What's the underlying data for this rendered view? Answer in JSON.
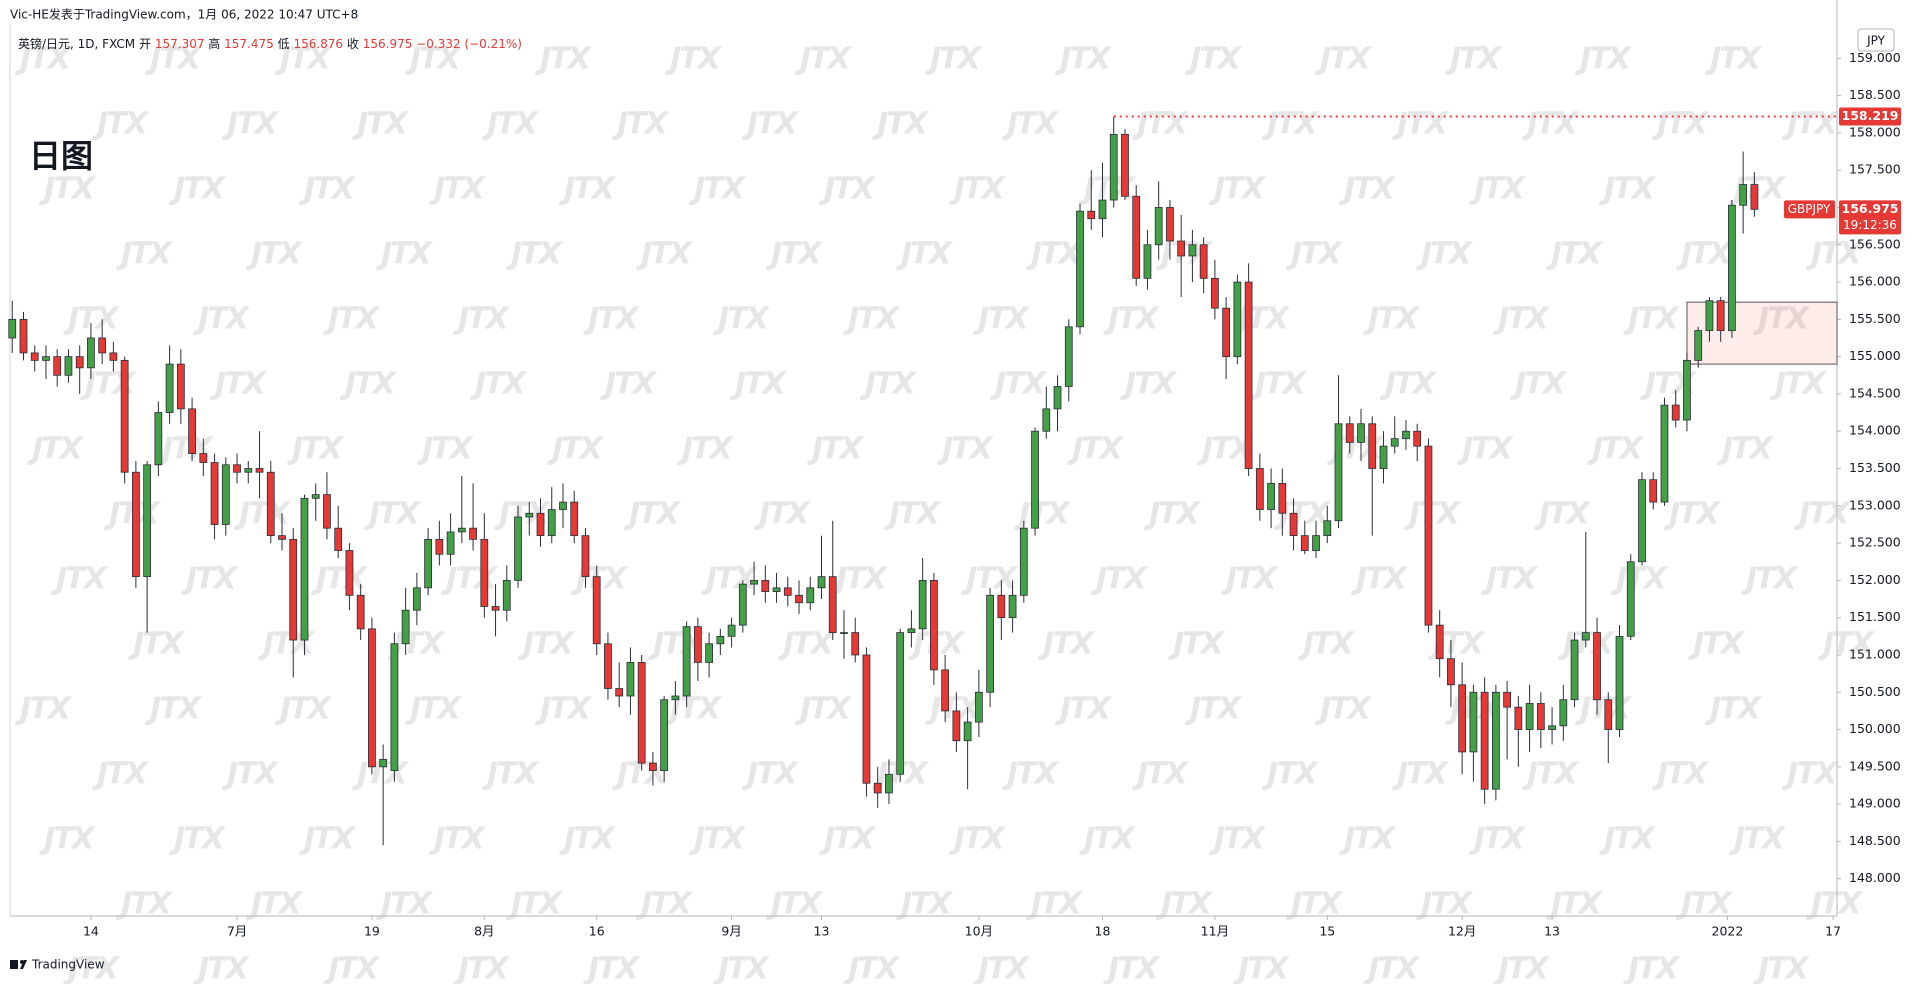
{
  "header": "Vic-HE发表于TradingView.com，1月 06, 2022 10:47 UTC+8",
  "annotation": "日图",
  "watermark": "JTX",
  "footer": "TradingView",
  "chart_data": {
    "type": "candlestick",
    "currency": "JPY",
    "symbol": "GBPJPY",
    "countdown": "19:12:36",
    "legend": {
      "open": "开",
      "high": "高",
      "low": "低",
      "close": "收",
      "change": "−0.332 (−0.21%)"
    },
    "up_color": "#43a047",
    "down_color": "#e53935",
    "xlim": [
      -0.2,
      162.35
    ],
    "ylim": [
      147.5,
      159.46
    ],
    "xticks": [
      {
        "value": 7,
        "label": "14"
      },
      {
        "value": 20,
        "label": "7月"
      },
      {
        "value": 32,
        "label": "19"
      },
      {
        "value": 42,
        "label": "8月"
      },
      {
        "value": 52,
        "label": "16"
      },
      {
        "value": 64,
        "label": "9月"
      },
      {
        "value": 72,
        "label": "13"
      },
      {
        "value": 86,
        "label": "10月"
      },
      {
        "value": 97,
        "label": "18"
      },
      {
        "value": 107,
        "label": "11月"
      },
      {
        "value": 117,
        "label": "15"
      },
      {
        "value": 129,
        "label": "12月"
      },
      {
        "value": 137,
        "label": "13"
      },
      {
        "value": 152.6,
        "label": "2022"
      },
      {
        "value": 162,
        "label": "17"
      }
    ],
    "yticks": [
      {
        "value": 148,
        "label": "148.000"
      },
      {
        "value": 148.5,
        "label": "148.500"
      },
      {
        "value": 149,
        "label": "149.000"
      },
      {
        "value": 149.5,
        "label": "149.500"
      },
      {
        "value": 150,
        "label": "150.000"
      },
      {
        "value": 150.5,
        "label": "150.500"
      },
      {
        "value": 151,
        "label": "151.000"
      },
      {
        "value": 151.5,
        "label": "151.500"
      },
      {
        "value": 152,
        "label": "152.000"
      },
      {
        "value": 152.5,
        "label": "152.500"
      },
      {
        "value": 153,
        "label": "153.000"
      },
      {
        "value": 153.5,
        "label": "153.500"
      },
      {
        "value": 154,
        "label": "154.000"
      },
      {
        "value": 154.5,
        "label": "154.500"
      },
      {
        "value": 155,
        "label": "155.000"
      },
      {
        "value": 155.5,
        "label": "155.500"
      },
      {
        "value": 156,
        "label": "156.000"
      },
      {
        "value": 156.5,
        "label": "156.500"
      },
      {
        "value": 157,
        "label": "157.000"
      },
      {
        "value": 157.5,
        "label": "157.500"
      },
      {
        "value": 158,
        "label": "158.000"
      },
      {
        "value": 158.5,
        "label": "158.500"
      },
      {
        "value": 159,
        "label": "159.000"
      }
    ],
    "hline": {
      "value": 158.219,
      "start": 98,
      "color": "#e53935"
    },
    "zone": {
      "start": 149,
      "top": 155.73,
      "bottom": 154.9
    },
    "series": [
      {
        "name": "英镑/日元, 1D, FXCM",
        "open": [
          155.25,
          155.5,
          155.05,
          154.95,
          155.0,
          154.75,
          155.0,
          154.85,
          155.25,
          155.05,
          154.95,
          153.45,
          152.05,
          153.55,
          154.25,
          154.9,
          154.3,
          153.7,
          153.58,
          152.75,
          153.55,
          153.45,
          153.5,
          153.45,
          152.6,
          152.55,
          151.2,
          153.1,
          153.15,
          152.7,
          152.4,
          151.8,
          151.35,
          149.5,
          149.45,
          151.15,
          151.6,
          151.9,
          152.55,
          152.35,
          152.65,
          152.7,
          152.55,
          151.65,
          151.6,
          152.0,
          152.85,
          152.9,
          152.6,
          152.95,
          153.05,
          152.6,
          152.05,
          151.15,
          150.55,
          150.45,
          150.9,
          149.55,
          149.45,
          150.4,
          150.45,
          151.38,
          150.9,
          151.15,
          151.25,
          151.4,
          151.95,
          152.0,
          151.85,
          151.9,
          151.8,
          151.7,
          151.9,
          152.05,
          151.3,
          151.3,
          151.0,
          149.28,
          149.15,
          149.4,
          151.3,
          151.35,
          152.0,
          150.8,
          150.25,
          149.85,
          150.1,
          150.5,
          151.8,
          151.5,
          151.8,
          152.7,
          154.0,
          154.3,
          154.6,
          155.4,
          156.95,
          156.85,
          157.1,
          157.98,
          157.15,
          156.05,
          156.5,
          157.0,
          156.55,
          156.35,
          156.5,
          156.05,
          155.65,
          155.0,
          156.0,
          153.5,
          152.95,
          153.3,
          152.9,
          152.6,
          152.4,
          152.6,
          152.8,
          154.1,
          153.85,
          154.1,
          153.5,
          153.8,
          153.9,
          154.0,
          153.8,
          151.4,
          150.95,
          150.6,
          149.7,
          150.5,
          149.2,
          150.5,
          150.3,
          150.0,
          150.35,
          150.0,
          150.05,
          150.4,
          151.2,
          151.3,
          150.4,
          150.0,
          151.25,
          152.25,
          153.35,
          153.05,
          154.35,
          154.15,
          154.95,
          155.35,
          155.75,
          155.35,
          157.03,
          157.307
        ],
        "high": [
          155.75,
          155.6,
          155.15,
          155.15,
          155.1,
          155.1,
          155.15,
          155.45,
          155.5,
          155.2,
          155.0,
          153.6,
          153.6,
          154.4,
          155.15,
          155.1,
          154.45,
          153.9,
          153.7,
          153.65,
          153.7,
          153.6,
          154.0,
          153.6,
          152.9,
          152.7,
          153.15,
          153.3,
          153.45,
          153.0,
          152.5,
          151.95,
          151.5,
          149.8,
          151.3,
          151.9,
          152.1,
          152.7,
          152.8,
          152.9,
          153.4,
          153.3,
          152.9,
          151.95,
          152.2,
          153.0,
          153.05,
          153.1,
          153.25,
          153.3,
          153.2,
          152.7,
          152.2,
          151.3,
          150.9,
          151.1,
          151.0,
          149.7,
          150.45,
          150.65,
          151.45,
          151.5,
          151.3,
          151.35,
          151.5,
          152.0,
          152.25,
          152.2,
          152.1,
          152.05,
          152.0,
          152.05,
          152.6,
          152.8,
          151.6,
          151.5,
          151.1,
          149.5,
          149.6,
          151.35,
          151.6,
          152.3,
          152.1,
          151.0,
          150.5,
          150.3,
          150.8,
          151.9,
          152.0,
          152.0,
          152.8,
          154.05,
          154.6,
          154.75,
          155.5,
          157.05,
          157.5,
          157.6,
          158.219,
          158.05,
          157.3,
          156.7,
          157.35,
          157.1,
          156.9,
          156.7,
          156.6,
          156.3,
          155.8,
          156.1,
          156.25,
          153.7,
          153.5,
          153.5,
          153.1,
          152.8,
          152.8,
          153.0,
          154.75,
          154.2,
          154.3,
          154.2,
          154.0,
          154.2,
          154.15,
          154.1,
          153.9,
          151.6,
          151.2,
          150.9,
          150.6,
          150.7,
          150.6,
          150.65,
          150.45,
          150.6,
          150.5,
          150.3,
          150.6,
          151.3,
          152.65,
          151.5,
          150.5,
          151.4,
          152.35,
          153.45,
          153.45,
          154.45,
          154.55,
          155.05,
          155.4,
          155.8,
          155.8,
          157.1,
          157.75,
          157.475
        ],
        "low": [
          155.05,
          154.95,
          154.8,
          154.7,
          154.6,
          154.65,
          154.5,
          154.7,
          154.9,
          154.8,
          153.3,
          151.9,
          151.3,
          153.4,
          154.1,
          154.1,
          153.6,
          153.4,
          152.55,
          152.6,
          153.3,
          153.3,
          153.1,
          152.5,
          152.4,
          150.7,
          151.0,
          152.8,
          152.55,
          152.3,
          151.6,
          151.2,
          149.4,
          148.45,
          149.3,
          151.0,
          151.4,
          151.8,
          152.2,
          152.2,
          152.5,
          152.4,
          151.5,
          151.25,
          151.45,
          151.9,
          152.6,
          152.45,
          152.5,
          152.7,
          152.5,
          151.9,
          151.0,
          150.4,
          150.3,
          150.2,
          149.45,
          149.25,
          149.3,
          150.2,
          150.3,
          150.65,
          150.7,
          151.0,
          151.1,
          151.3,
          151.8,
          151.7,
          151.7,
          151.65,
          151.55,
          151.6,
          151.75,
          151.2,
          150.95,
          150.9,
          149.1,
          148.95,
          149.0,
          149.3,
          151.1,
          151.2,
          150.6,
          150.1,
          149.7,
          149.2,
          149.9,
          150.3,
          151.2,
          151.3,
          151.7,
          152.6,
          153.9,
          154.0,
          154.4,
          155.3,
          156.7,
          156.6,
          157.0,
          157.1,
          155.95,
          155.9,
          156.3,
          156.3,
          155.8,
          156.0,
          155.85,
          155.5,
          154.7,
          154.9,
          153.4,
          152.8,
          152.7,
          152.6,
          152.4,
          152.35,
          152.3,
          152.5,
          152.7,
          153.7,
          153.6,
          152.6,
          153.3,
          153.7,
          153.75,
          153.6,
          151.3,
          150.7,
          150.3,
          149.4,
          149.3,
          149.0,
          149.05,
          149.6,
          149.5,
          149.7,
          149.75,
          149.8,
          149.85,
          150.3,
          151.1,
          150.2,
          149.55,
          149.9,
          151.2,
          152.2,
          152.95,
          153.0,
          154.05,
          154.0,
          154.85,
          155.2,
          155.2,
          155.25,
          156.65,
          156.876
        ],
        "close": [
          155.5,
          155.05,
          154.95,
          155.0,
          154.75,
          155.0,
          154.85,
          155.25,
          155.05,
          154.95,
          153.45,
          152.05,
          153.55,
          154.25,
          154.9,
          154.3,
          153.7,
          153.58,
          152.75,
          153.55,
          153.45,
          153.5,
          153.45,
          152.6,
          152.55,
          151.2,
          153.1,
          153.15,
          152.7,
          152.4,
          151.8,
          151.35,
          149.5,
          149.6,
          151.15,
          151.6,
          151.9,
          152.55,
          152.35,
          152.65,
          152.7,
          152.55,
          151.65,
          151.6,
          152.0,
          152.85,
          152.9,
          152.6,
          152.95,
          153.05,
          152.6,
          152.05,
          151.15,
          150.55,
          150.45,
          150.9,
          149.55,
          149.45,
          150.4,
          150.45,
          151.38,
          150.9,
          151.15,
          151.25,
          151.4,
          151.95,
          152.0,
          151.85,
          151.9,
          151.8,
          151.7,
          151.9,
          152.05,
          151.3,
          151.3,
          151.0,
          149.28,
          149.15,
          149.4,
          151.3,
          151.35,
          152.0,
          150.8,
          150.25,
          149.85,
          150.1,
          150.5,
          151.8,
          151.5,
          151.8,
          152.7,
          154.0,
          154.3,
          154.6,
          155.4,
          156.95,
          156.85,
          157.1,
          157.98,
          157.15,
          156.05,
          156.5,
          157.0,
          156.55,
          156.35,
          156.5,
          156.05,
          155.65,
          155.0,
          156.0,
          153.5,
          152.95,
          153.3,
          152.9,
          152.6,
          152.4,
          152.6,
          152.8,
          154.1,
          153.85,
          154.1,
          153.5,
          153.8,
          153.9,
          154.0,
          153.8,
          151.4,
          150.95,
          150.6,
          149.7,
          150.5,
          149.2,
          150.5,
          150.3,
          150.0,
          150.35,
          150.0,
          150.05,
          150.4,
          151.2,
          151.3,
          150.4,
          150.0,
          151.25,
          152.25,
          153.35,
          153.05,
          154.35,
          154.15,
          154.95,
          155.35,
          155.75,
          155.35,
          157.03,
          157.307,
          156.975
        ]
      }
    ]
  }
}
